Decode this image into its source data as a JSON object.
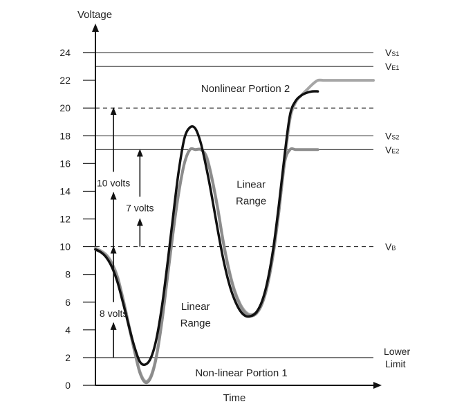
{
  "chart_data": {
    "type": "line",
    "xlabel": "Time",
    "ylabel": "Voltage",
    "ylim": [
      0,
      24
    ],
    "yticks": [
      0,
      2,
      4,
      6,
      8,
      10,
      12,
      14,
      16,
      18,
      20,
      22,
      24
    ],
    "grid": false,
    "reference_lines": [
      {
        "value": 24,
        "style": "solid",
        "label_main": "V",
        "label_sub": "S1"
      },
      {
        "value": 23,
        "style": "solid",
        "label_main": "V",
        "label_sub": "E1"
      },
      {
        "value": 20,
        "style": "dashed",
        "label_main": "",
        "label_sub": ""
      },
      {
        "value": 18,
        "style": "solid",
        "label_main": "V",
        "label_sub": "S2"
      },
      {
        "value": 17,
        "style": "solid",
        "label_main": "V",
        "label_sub": "E2"
      },
      {
        "value": 10,
        "style": "dashed",
        "label_main": "V",
        "label_sub": "B"
      },
      {
        "value": 2,
        "style": "solid",
        "label_main": "Lower",
        "label_sub": "Limit"
      }
    ],
    "series": [
      {
        "style": "gray",
        "color": "#a6a6a6",
        "x": [
          0,
          2,
          4,
          6,
          8,
          10,
          12,
          14,
          16,
          18,
          20,
          22,
          24,
          26,
          28,
          30,
          32,
          34,
          36,
          38,
          40,
          42,
          44,
          46,
          48,
          50,
          52,
          54,
          56,
          58,
          60,
          62,
          64,
          66,
          68,
          70,
          72,
          74,
          76,
          78,
          80,
          82,
          84,
          86,
          88,
          90,
          92,
          94,
          96,
          98,
          100
        ],
        "values": [
          9.9,
          9.7,
          9.4,
          8.8,
          7.8,
          6.2,
          4.4,
          2.6,
          1.0,
          0.3,
          0.7,
          2.2,
          4.8,
          8.0,
          11.2,
          14.0,
          16.0,
          17.0,
          17.0,
          17.0,
          16.5,
          14.9,
          12.8,
          10.4,
          8.4,
          6.9,
          5.9,
          5.3,
          5.1,
          5.3,
          6.0,
          7.4,
          9.6,
          12.6,
          16.0,
          19.2,
          20.4,
          20.9,
          21.3,
          21.7,
          22.0,
          22.0,
          22.0,
          22.0,
          22.0,
          22.0,
          22.0,
          22.0,
          22.0,
          22.0,
          22.0
        ]
      },
      {
        "style": "gray-clipped",
        "color": "#8c8c8c",
        "x": [
          0,
          2,
          4,
          6,
          8,
          10,
          12,
          14,
          16,
          18,
          20,
          22,
          24,
          26,
          28,
          30,
          32,
          34,
          36,
          38,
          40,
          42,
          44,
          46,
          48,
          50,
          52,
          54,
          56,
          58,
          60,
          62,
          64,
          66,
          68,
          70,
          72,
          74,
          76,
          78,
          80
        ],
        "values": [
          9.8,
          9.6,
          9.3,
          8.7,
          7.7,
          6.1,
          4.3,
          2.5,
          0.9,
          0.2,
          0.6,
          2.1,
          4.7,
          7.9,
          11.1,
          13.9,
          16.0,
          17.0,
          17.0,
          17.0,
          16.4,
          14.8,
          12.7,
          10.3,
          8.3,
          6.8,
          5.8,
          5.2,
          5.0,
          5.2,
          5.9,
          7.3,
          9.5,
          12.5,
          16.0,
          17.0,
          17.0,
          17.0,
          17.0,
          17.0,
          17.0
        ]
      },
      {
        "style": "black",
        "color": "#111111",
        "x": [
          0,
          2,
          4,
          6,
          8,
          10,
          12,
          14,
          16,
          18,
          20,
          22,
          24,
          26,
          28,
          30,
          32,
          34,
          36,
          38,
          40,
          42,
          44,
          46,
          48,
          50,
          52,
          54,
          56,
          58,
          60,
          62,
          64,
          66,
          68,
          70,
          72,
          74,
          76,
          78,
          80
        ],
        "values": [
          9.8,
          9.6,
          9.2,
          8.5,
          7.4,
          5.9,
          4.3,
          2.8,
          1.7,
          1.5,
          2.0,
          3.4,
          5.8,
          8.9,
          12.3,
          15.5,
          17.8,
          18.6,
          18.5,
          17.4,
          15.6,
          13.5,
          11.2,
          9.1,
          7.4,
          6.2,
          5.4,
          5.0,
          5.0,
          5.3,
          6.1,
          7.6,
          9.9,
          13.0,
          16.5,
          19.5,
          20.5,
          20.9,
          21.1,
          21.2,
          21.2
        ]
      }
    ],
    "annotations": [
      {
        "text": "Nonlinear Portion 2",
        "x": 54,
        "y": 21.4,
        "anchor": "middle"
      },
      {
        "text": "Linear",
        "x": 56,
        "y": 14.5,
        "anchor": "middle"
      },
      {
        "text": "Range",
        "x": 56,
        "y": 13.3,
        "anchor": "middle"
      },
      {
        "text": "Linear",
        "x": 36,
        "y": 5.7,
        "anchor": "middle"
      },
      {
        "text": "Range",
        "x": 36,
        "y": 4.5,
        "anchor": "middle"
      },
      {
        "text": "Non-linear Portion 1",
        "x": 52.5,
        "y": 0.9,
        "anchor": "middle"
      },
      {
        "text": "10 volts",
        "x": 6.5,
        "y": 14.6,
        "anchor": "middle"
      },
      {
        "text": "7 volts",
        "x": 16,
        "y": 12.8,
        "anchor": "middle"
      },
      {
        "text": "8 volts",
        "x": 6.5,
        "y": 5.2,
        "anchor": "middle"
      }
    ],
    "arrows": [
      {
        "x": 6.5,
        "from": 20,
        "to": 15.4
      },
      {
        "x": 6.5,
        "from": 13.9,
        "to": 10
      },
      {
        "x": 16,
        "from": 17,
        "to": 13.6
      },
      {
        "x": 16,
        "from": 12.0,
        "to": 10
      },
      {
        "x": 6.5,
        "from": 10,
        "to": 6.0
      },
      {
        "x": 6.5,
        "from": 4.5,
        "to": 2
      }
    ]
  }
}
